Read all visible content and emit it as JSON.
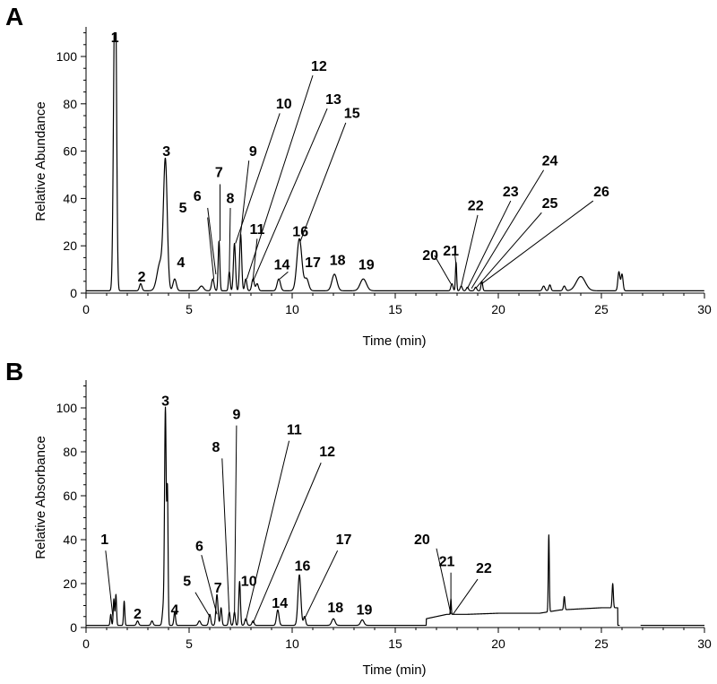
{
  "chart_data": [
    {
      "panel": "A",
      "type": "line",
      "xlabel": "Time (min)",
      "ylabel": "Relative Abundance",
      "xlim": [
        0,
        30
      ],
      "ylim": [
        0,
        110
      ],
      "xticks": [
        0,
        5,
        10,
        15,
        20,
        25,
        30
      ],
      "yticks": [
        0,
        20,
        40,
        60,
        80,
        100
      ],
      "baseline": 1,
      "peaks": [
        {
          "t": 1.38,
          "h": 100,
          "w": 0.06
        },
        {
          "t": 1.45,
          "h": 70,
          "w": 0.05
        },
        {
          "t": 2.65,
          "h": 3,
          "w": 0.06
        },
        {
          "t": 3.85,
          "h": 53,
          "w": 0.09
        },
        {
          "t": 3.6,
          "h": 12,
          "w": 0.15
        },
        {
          "t": 4.3,
          "h": 5,
          "w": 0.08
        },
        {
          "t": 5.6,
          "h": 2,
          "w": 0.1
        },
        {
          "t": 6.15,
          "h": 5,
          "w": 0.06
        },
        {
          "t": 6.45,
          "h": 21,
          "w": 0.04
        },
        {
          "t": 6.95,
          "h": 8,
          "w": 0.04
        },
        {
          "t": 7.2,
          "h": 20,
          "w": 0.05
        },
        {
          "t": 7.5,
          "h": 24,
          "w": 0.05
        },
        {
          "t": 7.75,
          "h": 5,
          "w": 0.05
        },
        {
          "t": 8.1,
          "h": 5,
          "w": 0.06
        },
        {
          "t": 8.3,
          "h": 3,
          "w": 0.06
        },
        {
          "t": 9.35,
          "h": 5,
          "w": 0.08
        },
        {
          "t": 10.35,
          "h": 22,
          "w": 0.12
        },
        {
          "t": 10.7,
          "h": 5,
          "w": 0.1
        },
        {
          "t": 12.05,
          "h": 7,
          "w": 0.12
        },
        {
          "t": 13.45,
          "h": 5,
          "w": 0.15
        },
        {
          "t": 17.75,
          "h": 3,
          "w": 0.05
        },
        {
          "t": 17.95,
          "h": 12,
          "w": 0.03
        },
        {
          "t": 18.2,
          "h": 2,
          "w": 0.05
        },
        {
          "t": 18.5,
          "h": 1.5,
          "w": 0.05
        },
        {
          "t": 18.9,
          "h": 1.5,
          "w": 0.05
        },
        {
          "t": 19.2,
          "h": 4,
          "w": 0.04
        },
        {
          "t": 22.2,
          "h": 2,
          "w": 0.06
        },
        {
          "t": 22.5,
          "h": 2.5,
          "w": 0.05
        },
        {
          "t": 23.2,
          "h": 2,
          "w": 0.06
        },
        {
          "t": 24.0,
          "h": 6,
          "w": 0.22
        },
        {
          "t": 25.85,
          "h": 8,
          "w": 0.05
        },
        {
          "t": 26.0,
          "h": 7,
          "w": 0.05
        }
      ],
      "labels": [
        {
          "text": "1",
          "x": 1.4,
          "y": 106
        },
        {
          "text": "2",
          "x": 2.7,
          "y": 5
        },
        {
          "text": "3",
          "x": 3.9,
          "y": 58
        },
        {
          "text": "4",
          "x": 4.6,
          "y": 11
        },
        {
          "text": "5",
          "x": 4.7,
          "y": 34
        },
        {
          "text": "6",
          "x": 5.4,
          "y": 39
        },
        {
          "text": "7",
          "x": 6.45,
          "y": 49
        },
        {
          "text": "8",
          "x": 7.0,
          "y": 38
        },
        {
          "text": "9",
          "x": 8.1,
          "y": 58
        },
        {
          "text": "10",
          "x": 9.6,
          "y": 78
        },
        {
          "text": "11",
          "x": 8.3,
          "y": 25
        },
        {
          "text": "12",
          "x": 11.3,
          "y": 94
        },
        {
          "text": "13",
          "x": 12.0,
          "y": 80
        },
        {
          "text": "14",
          "x": 9.5,
          "y": 10
        },
        {
          "text": "15",
          "x": 12.9,
          "y": 74
        },
        {
          "text": "16",
          "x": 10.4,
          "y": 24
        },
        {
          "text": "17",
          "x": 11.0,
          "y": 11
        },
        {
          "text": "18",
          "x": 12.2,
          "y": 12
        },
        {
          "text": "19",
          "x": 13.6,
          "y": 10
        },
        {
          "text": "20",
          "x": 16.7,
          "y": 14
        },
        {
          "text": "21",
          "x": 17.7,
          "y": 16
        },
        {
          "text": "22",
          "x": 18.9,
          "y": 35
        },
        {
          "text": "23",
          "x": 20.6,
          "y": 41
        },
        {
          "text": "24",
          "x": 22.5,
          "y": 54
        },
        {
          "text": "25",
          "x": 22.5,
          "y": 36
        },
        {
          "text": "26",
          "x": 25.0,
          "y": 41
        }
      ],
      "leaders": [
        {
          "from": [
            5.9,
            32
          ],
          "to": [
            6.2,
            6
          ]
        },
        {
          "from": [
            5.9,
            36
          ],
          "to": [
            6.3,
            8
          ]
        },
        {
          "from": [
            6.5,
            46
          ],
          "to": [
            6.5,
            22
          ]
        },
        {
          "from": [
            7.0,
            36
          ],
          "to": [
            6.95,
            9
          ]
        },
        {
          "from": [
            7.9,
            56
          ],
          "to": [
            7.5,
            25
          ]
        },
        {
          "from": [
            9.4,
            76
          ],
          "to": [
            7.25,
            21
          ]
        },
        {
          "from": [
            8.3,
            23
          ],
          "to": [
            8.1,
            6
          ]
        },
        {
          "from": [
            11.0,
            92
          ],
          "to": [
            7.8,
            6
          ]
        },
        {
          "from": [
            11.7,
            78
          ],
          "to": [
            8.1,
            5
          ]
        },
        {
          "from": [
            9.8,
            9
          ],
          "to": [
            9.4,
            6
          ]
        },
        {
          "from": [
            12.6,
            72
          ],
          "to": [
            10.4,
            22
          ]
        },
        {
          "from": [
            16.9,
            16
          ],
          "to": [
            17.7,
            4
          ]
        },
        {
          "from": [
            17.9,
            16
          ],
          "to": [
            17.95,
            12
          ]
        },
        {
          "from": [
            19.0,
            33
          ],
          "to": [
            18.2,
            3
          ]
        },
        {
          "from": [
            20.6,
            39
          ],
          "to": [
            18.5,
            2
          ]
        },
        {
          "from": [
            22.2,
            52
          ],
          "to": [
            18.7,
            2
          ]
        },
        {
          "from": [
            22.1,
            34
          ],
          "to": [
            18.9,
            2
          ]
        },
        {
          "from": [
            24.6,
            39
          ],
          "to": [
            19.2,
            4
          ]
        }
      ]
    },
    {
      "panel": "B",
      "type": "line",
      "xlabel": "Time (min)",
      "ylabel": "Relative Absorbance",
      "xlim": [
        0,
        30
      ],
      "ylim": [
        0,
        110
      ],
      "xticks": [
        0,
        5,
        10,
        15,
        20,
        25,
        30
      ],
      "yticks": [
        0,
        20,
        40,
        60,
        80,
        100
      ],
      "baseline": 1,
      "plateau": {
        "start": 16.5,
        "end": 25.8,
        "levels": [
          [
            16.5,
            3
          ],
          [
            17.5,
            5
          ],
          [
            18.5,
            5
          ],
          [
            20.0,
            5.5
          ],
          [
            22.0,
            5.5
          ],
          [
            23.0,
            7
          ],
          [
            25.0,
            8
          ],
          [
            25.8,
            8
          ]
        ]
      },
      "peaks": [
        {
          "t": 1.2,
          "h": 5,
          "w": 0.03
        },
        {
          "t": 1.35,
          "h": 12,
          "w": 0.03
        },
        {
          "t": 1.45,
          "h": 14,
          "w": 0.03
        },
        {
          "t": 1.85,
          "h": 11,
          "w": 0.03
        },
        {
          "t": 2.5,
          "h": 2,
          "w": 0.05
        },
        {
          "t": 3.2,
          "h": 2,
          "w": 0.05
        },
        {
          "t": 3.75,
          "h": 8,
          "w": 0.05
        },
        {
          "t": 3.85,
          "h": 98,
          "w": 0.04
        },
        {
          "t": 3.95,
          "h": 60,
          "w": 0.03
        },
        {
          "t": 4.3,
          "h": 6,
          "w": 0.04
        },
        {
          "t": 5.5,
          "h": 2,
          "w": 0.06
        },
        {
          "t": 6.0,
          "h": 5,
          "w": 0.05
        },
        {
          "t": 6.35,
          "h": 14,
          "w": 0.05
        },
        {
          "t": 6.55,
          "h": 8,
          "w": 0.04
        },
        {
          "t": 6.95,
          "h": 6,
          "w": 0.04
        },
        {
          "t": 7.2,
          "h": 6,
          "w": 0.04
        },
        {
          "t": 7.45,
          "h": 20,
          "w": 0.04
        },
        {
          "t": 7.75,
          "h": 3,
          "w": 0.05
        },
        {
          "t": 8.1,
          "h": 2,
          "w": 0.05
        },
        {
          "t": 9.3,
          "h": 7,
          "w": 0.06
        },
        {
          "t": 10.35,
          "h": 23,
          "w": 0.07
        },
        {
          "t": 10.6,
          "h": 4,
          "w": 0.05
        },
        {
          "t": 12.0,
          "h": 3,
          "w": 0.08
        },
        {
          "t": 13.4,
          "h": 2.5,
          "w": 0.08
        },
        {
          "t": 17.7,
          "h": 7,
          "w": 0.02
        },
        {
          "t": 22.45,
          "h": 35,
          "w": 0.025
        },
        {
          "t": 23.2,
          "h": 6,
          "w": 0.03
        },
        {
          "t": 25.55,
          "h": 11,
          "w": 0.03
        }
      ],
      "labels": [
        {
          "text": "1",
          "x": 0.9,
          "y": 38
        },
        {
          "text": "2",
          "x": 2.5,
          "y": 4
        },
        {
          "text": "3",
          "x": 3.85,
          "y": 101
        },
        {
          "text": "4",
          "x": 4.3,
          "y": 6
        },
        {
          "text": "5",
          "x": 4.9,
          "y": 19
        },
        {
          "text": "6",
          "x": 5.5,
          "y": 35
        },
        {
          "text": "7",
          "x": 6.4,
          "y": 16
        },
        {
          "text": "8",
          "x": 6.3,
          "y": 80
        },
        {
          "text": "9",
          "x": 7.3,
          "y": 95
        },
        {
          "text": "10",
          "x": 7.9,
          "y": 19
        },
        {
          "text": "11",
          "x": 10.1,
          "y": 88
        },
        {
          "text": "12",
          "x": 11.7,
          "y": 78
        },
        {
          "text": "14",
          "x": 9.4,
          "y": 9
        },
        {
          "text": "16",
          "x": 10.5,
          "y": 26
        },
        {
          "text": "17",
          "x": 12.5,
          "y": 38
        },
        {
          "text": "18",
          "x": 12.1,
          "y": 7
        },
        {
          "text": "19",
          "x": 13.5,
          "y": 6
        },
        {
          "text": "20",
          "x": 16.3,
          "y": 38
        },
        {
          "text": "21",
          "x": 17.5,
          "y": 28
        },
        {
          "text": "22",
          "x": 19.3,
          "y": 25
        }
      ],
      "leaders": [
        {
          "from": [
            0.95,
            35
          ],
          "to": [
            1.3,
            5
          ]
        },
        {
          "from": [
            5.3,
            16
          ],
          "to": [
            6.0,
            5
          ]
        },
        {
          "from": [
            5.6,
            33
          ],
          "to": [
            6.35,
            6
          ]
        },
        {
          "from": [
            6.6,
            77
          ],
          "to": [
            6.95,
            6
          ]
        },
        {
          "from": [
            7.3,
            92
          ],
          "to": [
            7.2,
            6
          ]
        },
        {
          "from": [
            9.85,
            85
          ],
          "to": [
            7.75,
            3
          ]
        },
        {
          "from": [
            11.4,
            75
          ],
          "to": [
            8.1,
            2
          ]
        },
        {
          "from": [
            12.2,
            35
          ],
          "to": [
            10.6,
            4
          ]
        },
        {
          "from": [
            17.0,
            36
          ],
          "to": [
            17.7,
            6
          ]
        },
        {
          "from": [
            17.7,
            25
          ],
          "to": [
            17.7,
            8
          ]
        },
        {
          "from": [
            19.0,
            22
          ],
          "to": [
            17.8,
            6
          ]
        }
      ]
    }
  ]
}
